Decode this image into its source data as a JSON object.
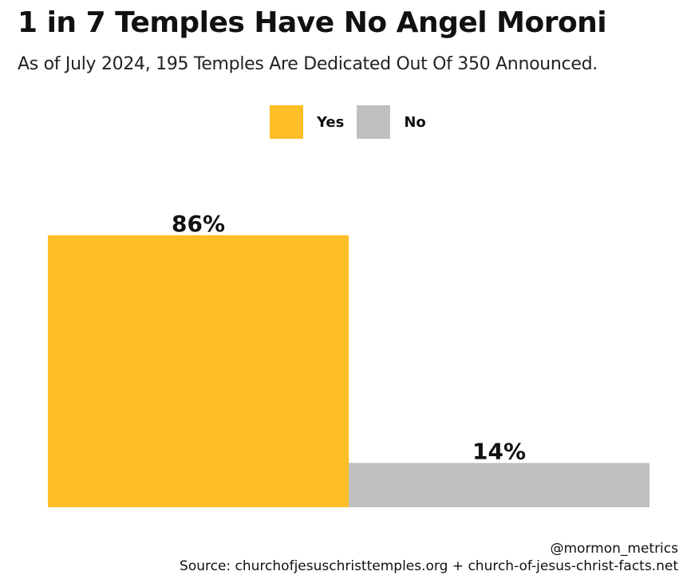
{
  "title": "1 in 7 Temples Have No Angel Moroni",
  "subtitle": "As of July 2024, 195 Temples Are Dedicated Out Of 350 Announced.",
  "handle": "@mormon_metrics",
  "source": "Source: churchofjesuschristtemples.org + church-of-jesus-christ-facts.net",
  "colors": {
    "yes": "#FDBE26",
    "no": "#BFBFBF"
  },
  "legend": [
    {
      "label": "Yes",
      "color": "#FDBE26"
    },
    {
      "label": "No",
      "color": "#BFBFBF"
    }
  ],
  "chart_data": {
    "type": "bar",
    "title": "1 in 7 Temples Have No Angel Moroni",
    "subtitle": "As of July 2024, 195 Temples Are Dedicated Out Of 350 Announced.",
    "categories": [
      "Yes",
      "No"
    ],
    "values": [
      86,
      14
    ],
    "value_labels": [
      "86%",
      "14%"
    ],
    "colors": [
      "#FDBE26",
      "#BFBFBF"
    ],
    "xlabel": "",
    "ylabel": "",
    "ylim": [
      0,
      100
    ],
    "grid": false,
    "legend_position": "top-center"
  }
}
